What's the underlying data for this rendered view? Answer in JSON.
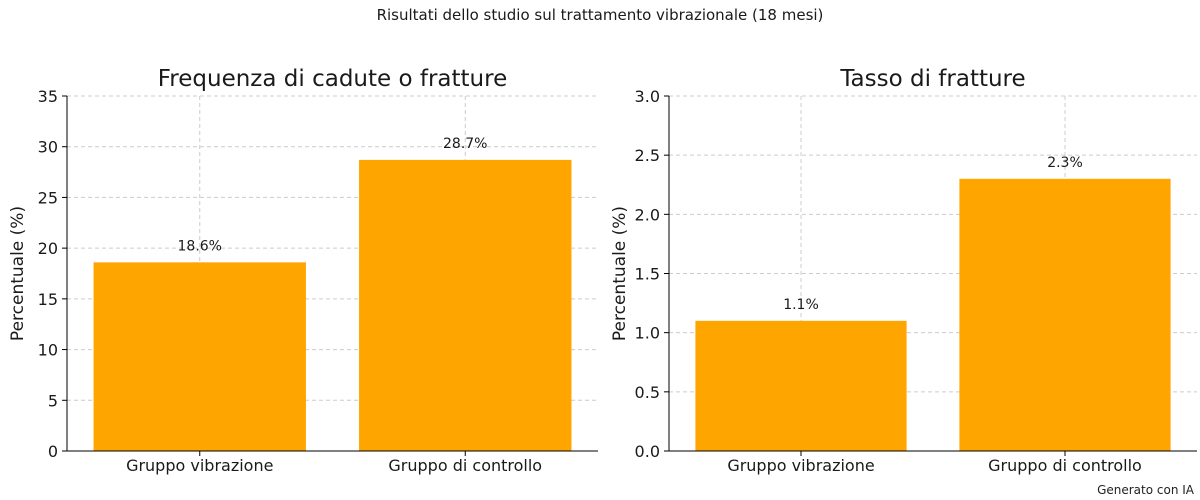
{
  "suptitle": "Risultati dello studio sul trattamento vibrazionale (18 mesi)",
  "watermark": "Generato con IA",
  "bar_color": "#FFA500",
  "chart_data": [
    {
      "type": "bar",
      "title": "Frequenza di cadute o fratture",
      "ylabel": "Percentuale (%)",
      "categories": [
        "Gruppo vibrazione",
        "Gruppo di controllo"
      ],
      "values": [
        18.6,
        28.7
      ],
      "data_labels": [
        "18.6%",
        "28.7%"
      ],
      "ylim": [
        0,
        35
      ],
      "yticks": [
        0,
        5,
        10,
        15,
        20,
        25,
        30,
        35
      ],
      "ytick_labels": [
        "0",
        "5",
        "10",
        "15",
        "20",
        "25",
        "30",
        "35"
      ],
      "grid": true
    },
    {
      "type": "bar",
      "title": "Tasso di fratture",
      "ylabel": "Percentuale (%)",
      "categories": [
        "Gruppo vibrazione",
        "Gruppo di controllo"
      ],
      "values": [
        1.1,
        2.3
      ],
      "data_labels": [
        "1.1%",
        "2.3%"
      ],
      "ylim": [
        0,
        3.0
      ],
      "yticks": [
        0,
        0.5,
        1.0,
        1.5,
        2.0,
        2.5,
        3.0
      ],
      "ytick_labels": [
        "0.0",
        "0.5",
        "1.0",
        "1.5",
        "2.0",
        "2.5",
        "3.0"
      ],
      "grid": true
    }
  ]
}
